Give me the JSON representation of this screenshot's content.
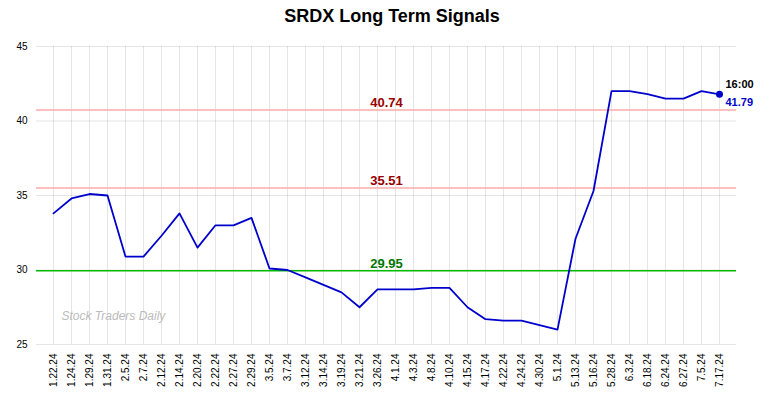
{
  "chart_data": {
    "type": "line",
    "title": "SRDX Long Term Signals",
    "categories": [
      "1.22.24",
      "1.24.24",
      "1.29.24",
      "1.31.24",
      "2.5.24",
      "2.7.24",
      "2.12.24",
      "2.14.24",
      "2.20.24",
      "2.22.24",
      "2.27.24",
      "2.29.24",
      "3.5.24",
      "3.7.24",
      "3.12.24",
      "3.14.24",
      "3.19.24",
      "3.21.24",
      "3.26.24",
      "4.1.24",
      "4.3.24",
      "4.8.24",
      "4.10.24",
      "4.15.24",
      "4.17.24",
      "4.22.24",
      "4.24.24",
      "4.30.24",
      "5.1.24",
      "5.13.24",
      "5.16.24",
      "5.28.24",
      "6.3.24",
      "6.18.24",
      "6.24.24",
      "6.27.24",
      "7.5.24",
      "7.17.24"
    ],
    "values": [
      33.8,
      34.8,
      35.1,
      35.0,
      30.9,
      30.9,
      32.3,
      33.8,
      31.5,
      33.0,
      33.0,
      33.5,
      30.1,
      30.0,
      29.5,
      29.0,
      28.5,
      27.5,
      28.7,
      28.7,
      28.7,
      28.8,
      28.8,
      27.5,
      26.7,
      26.6,
      26.6,
      26.3,
      26.0,
      32.1,
      35.3,
      42.0,
      42.0,
      41.8,
      41.5,
      41.5,
      42.0,
      41.79
    ],
    "color": "#0000cc",
    "ylim": [
      25,
      45
    ],
    "yticks": [
      25,
      30,
      35,
      40,
      45
    ],
    "grid": true,
    "hlines": [
      {
        "value": 40.74,
        "label": "40.74",
        "color": "#ffaaaa",
        "label_color": "#990000"
      },
      {
        "value": 35.51,
        "label": "35.51",
        "color": "#ffaaaa",
        "label_color": "#990000"
      },
      {
        "value": 29.95,
        "label": "29.95",
        "color": "#00bb00",
        "label_color": "#007700"
      }
    ],
    "annotations": [
      {
        "text": "16:00",
        "color": "#000000"
      },
      {
        "text": "41.79",
        "color": "#0000cc"
      }
    ],
    "watermark": "Stock Traders Daily"
  }
}
